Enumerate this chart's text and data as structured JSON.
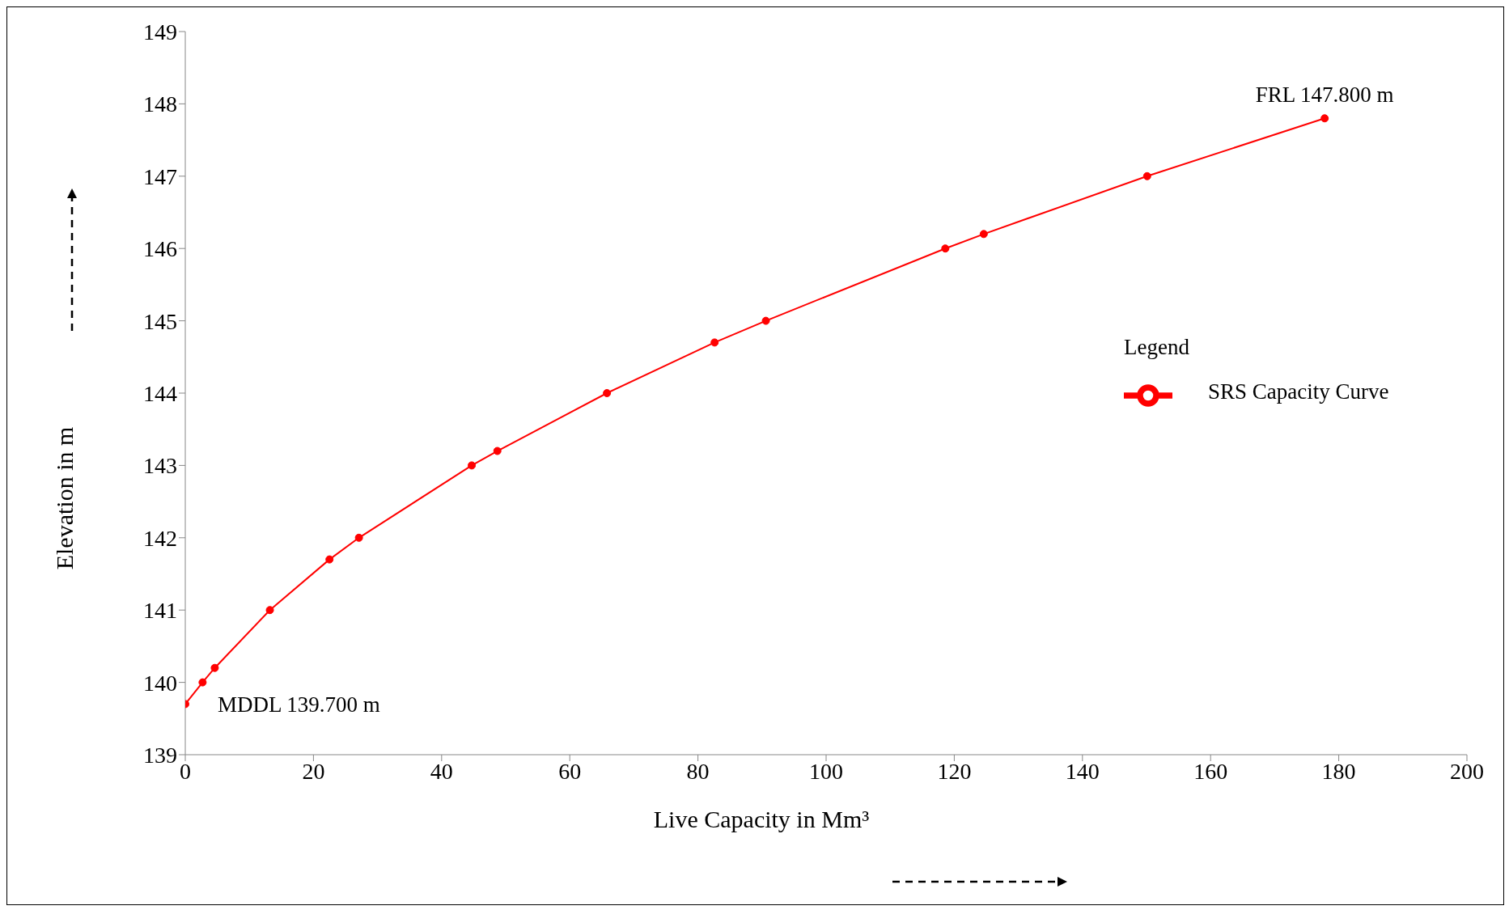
{
  "chart_data": {
    "type": "line",
    "xlabel": "Live Capacity in Mm³",
    "ylabel": "Elevation in m",
    "legend_title": "Legend",
    "legend": "right",
    "marker": "circle",
    "line_style": "solid",
    "grid": false,
    "x": [
      0,
      2.7,
      4.6,
      13.2,
      22.5,
      27.1,
      44.7,
      48.7,
      65.8,
      82.6,
      90.6,
      118.6,
      124.6,
      150.1,
      177.8
    ],
    "series": [
      {
        "name": "SRS Capacity Curve",
        "color": "#ff0000",
        "values": [
          139.7,
          140.0,
          140.2,
          141.0,
          141.7,
          142.0,
          143.0,
          143.2,
          144.0,
          144.7,
          145.0,
          146.0,
          146.2,
          147.0,
          147.8
        ]
      }
    ],
    "xlim": [
      0,
      200
    ],
    "xticks": [
      0,
      20,
      40,
      60,
      80,
      100,
      120,
      140,
      160,
      180,
      200
    ],
    "ylim": [
      139,
      149
    ],
    "yticks": [
      139,
      140,
      141,
      142,
      143,
      144,
      145,
      146,
      147,
      148,
      149
    ],
    "annotations": [
      {
        "text": "FRL 147.800 m",
        "x": 177.8,
        "y": 147.8
      },
      {
        "text": "MDDL 139.700 m",
        "x": 0,
        "y": 139.7
      }
    ]
  }
}
